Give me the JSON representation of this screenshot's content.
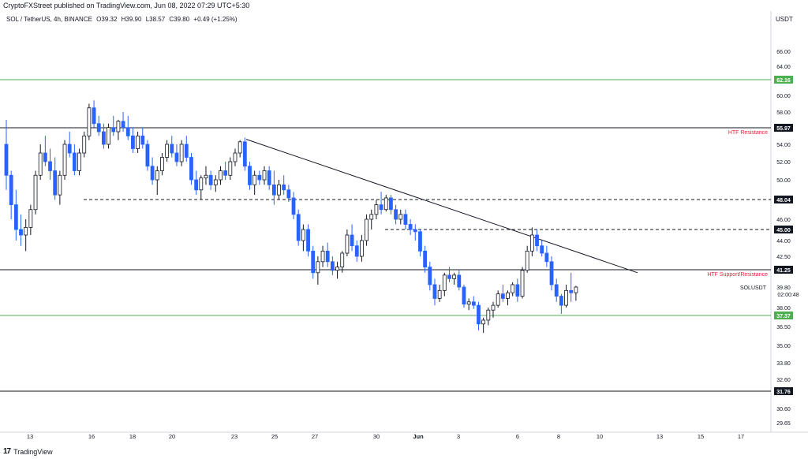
{
  "header": {
    "publisher": "CryptoFXStreet published on TradingView.com, Jun 08, 2022 07:29 UTC+5:30",
    "symbol": "SOL / TetherUS, 4h, BINANCE",
    "open": "O39.32",
    "high": "H39.90",
    "low": "L38.57",
    "close": "C39.80",
    "change": "+0.49 (+1.25%)",
    "currency": "USDT"
  },
  "footer": {
    "logo_text": "17",
    "brand": "TradingView"
  },
  "colors": {
    "up": "#131722",
    "down": "#2962ff",
    "green_line": "#4caf50",
    "label_red": "#e91e3c",
    "axis_bg": "#131722",
    "green_label_bg": "#4caf50"
  },
  "chart_data": {
    "type": "candlestick",
    "timeframe": "4h",
    "symbol": "SOLUSDT",
    "y_axis_ticks": [
      66.0,
      64.0,
      62.16,
      60.0,
      58.0,
      55.97,
      54.0,
      52.0,
      50.0,
      48.04,
      46.0,
      45.0,
      44.0,
      42.5,
      41.25,
      39.8,
      38.0,
      37.37,
      36.5,
      35.0,
      33.8,
      32.6,
      31.76,
      30.6,
      29.65
    ],
    "x_axis_labels": [
      "13",
      "16",
      "18",
      "20",
      "23",
      "25",
      "27",
      "30",
      "Jun",
      "3",
      "6",
      "8",
      "10",
      "13",
      "15",
      "17"
    ],
    "last_price": {
      "symbol": "SOLUSDT",
      "value": "39.80",
      "countdown": "02:00:48"
    },
    "horizontal_levels": [
      {
        "price": 62.16,
        "style": "solid",
        "color": "green",
        "label": ""
      },
      {
        "price": 55.97,
        "style": "solid",
        "color": "black",
        "label": "HTF Resistance"
      },
      {
        "price": 48.04,
        "style": "dashed",
        "color": "black",
        "label": ""
      },
      {
        "price": 45.0,
        "style": "dashed",
        "color": "black",
        "label": ""
      },
      {
        "price": 41.25,
        "style": "solid",
        "color": "black",
        "label": "HTF Support/Resistance"
      },
      {
        "price": 37.37,
        "style": "solid",
        "color": "green",
        "label": ""
      },
      {
        "price": 31.76,
        "style": "solid",
        "color": "black",
        "label": ""
      }
    ],
    "trendline": {
      "from": {
        "day": "May 23",
        "price": 54.6
      },
      "to": {
        "day": "Jun 12",
        "price": 41.0
      }
    },
    "candles": [
      [
        54.0,
        57.0,
        49.0,
        50.5
      ],
      [
        50.5,
        51.0,
        46.0,
        47.5
      ],
      [
        47.5,
        49.0,
        44.0,
        45.0
      ],
      [
        45.0,
        46.5,
        43.5,
        44.5
      ],
      [
        44.5,
        46.0,
        43.0,
        45.2
      ],
      [
        45.2,
        47.5,
        44.5,
        47.0
      ],
      [
        47.0,
        51.0,
        46.5,
        50.5
      ],
      [
        50.5,
        54.0,
        50.0,
        53.0
      ],
      [
        53.0,
        55.0,
        51.5,
        52.0
      ],
      [
        52.0,
        53.5,
        50.0,
        51.0
      ],
      [
        51.0,
        52.5,
        48.0,
        48.5
      ],
      [
        48.5,
        51.0,
        47.5,
        50.5
      ],
      [
        50.5,
        54.5,
        50.0,
        54.0
      ],
      [
        54.0,
        55.5,
        52.5,
        53.0
      ],
      [
        53.0,
        54.0,
        50.5,
        51.0
      ],
      [
        51.0,
        53.5,
        50.5,
        53.0
      ],
      [
        53.0,
        55.5,
        52.5,
        55.0
      ],
      [
        55.0,
        59.0,
        54.5,
        58.5
      ],
      [
        58.5,
        59.4,
        56.0,
        56.5
      ],
      [
        56.5,
        57.5,
        55.0,
        55.5
      ],
      [
        55.5,
        56.5,
        53.5,
        54.0
      ],
      [
        54.0,
        56.5,
        53.5,
        56.0
      ],
      [
        56.0,
        57.5,
        55.0,
        55.5
      ],
      [
        55.5,
        57.0,
        54.5,
        56.8
      ],
      [
        56.8,
        58.0,
        55.5,
        56.0
      ],
      [
        56.0,
        57.5,
        54.5,
        55.0
      ],
      [
        55.0,
        56.0,
        53.0,
        53.5
      ],
      [
        53.5,
        55.5,
        53.0,
        55.0
      ],
      [
        55.0,
        56.0,
        53.5,
        54.0
      ],
      [
        54.0,
        54.5,
        51.0,
        51.5
      ],
      [
        51.5,
        52.5,
        49.5,
        50.0
      ],
      [
        50.0,
        51.5,
        48.5,
        51.0
      ],
      [
        51.0,
        53.0,
        50.5,
        52.5
      ],
      [
        52.5,
        54.5,
        52.0,
        54.0
      ],
      [
        54.0,
        55.0,
        52.5,
        53.0
      ],
      [
        53.0,
        54.0,
        51.5,
        52.0
      ],
      [
        52.0,
        54.5,
        51.5,
        54.0
      ],
      [
        54.0,
        55.0,
        52.0,
        52.5
      ],
      [
        52.5,
        53.0,
        49.5,
        50.0
      ],
      [
        50.0,
        51.0,
        48.5,
        49.0
      ],
      [
        49.0,
        50.5,
        48.0,
        50.2
      ],
      [
        50.2,
        51.5,
        49.5,
        50.5
      ],
      [
        50.5,
        51.0,
        49.0,
        49.5
      ],
      [
        49.5,
        50.5,
        48.8,
        50.0
      ],
      [
        50.0,
        51.5,
        49.5,
        51.0
      ],
      [
        51.0,
        52.0,
        50.0,
        50.5
      ],
      [
        50.5,
        52.5,
        50.0,
        52.0
      ],
      [
        52.0,
        53.5,
        51.5,
        53.0
      ],
      [
        53.0,
        54.5,
        52.5,
        54.3
      ],
      [
        54.3,
        54.8,
        51.0,
        51.5
      ],
      [
        51.5,
        52.0,
        49.0,
        49.5
      ],
      [
        49.5,
        51.0,
        48.5,
        50.5
      ],
      [
        50.5,
        51.0,
        49.5,
        50.0
      ],
      [
        50.0,
        51.5,
        49.5,
        51.0
      ],
      [
        51.0,
        51.5,
        49.0,
        49.5
      ],
      [
        49.5,
        51.0,
        47.5,
        48.5
      ],
      [
        48.5,
        50.0,
        48.0,
        49.5
      ],
      [
        49.5,
        50.5,
        48.5,
        49.0
      ],
      [
        49.0,
        49.5,
        47.8,
        48.2
      ],
      [
        48.2,
        48.8,
        46.0,
        46.5
      ],
      [
        46.5,
        47.0,
        43.5,
        44.0
      ],
      [
        44.0,
        45.5,
        43.0,
        45.0
      ],
      [
        45.0,
        45.5,
        42.5,
        43.0
      ],
      [
        43.0,
        43.5,
        40.5,
        41.0
      ],
      [
        41.0,
        42.5,
        40.0,
        42.0
      ],
      [
        42.0,
        43.5,
        41.5,
        43.0
      ],
      [
        43.0,
        43.8,
        41.5,
        42.0
      ],
      [
        42.0,
        42.5,
        40.8,
        41.2
      ],
      [
        41.2,
        42.0,
        40.5,
        41.5
      ],
      [
        41.5,
        43.0,
        41.0,
        42.8
      ],
      [
        42.8,
        45.0,
        42.5,
        44.5
      ],
      [
        44.5,
        45.5,
        43.0,
        43.5
      ],
      [
        43.5,
        44.0,
        42.0,
        42.5
      ],
      [
        42.5,
        44.5,
        42.0,
        44.0
      ],
      [
        44.0,
        46.5,
        43.5,
        46.0
      ],
      [
        46.0,
        47.0,
        45.0,
        46.5
      ],
      [
        46.5,
        48.0,
        46.0,
        47.5
      ],
      [
        47.5,
        48.8,
        46.5,
        47.0
      ],
      [
        47.0,
        48.5,
        46.8,
        48.2
      ],
      [
        48.2,
        48.5,
        46.5,
        47.0
      ],
      [
        47.0,
        47.5,
        45.5,
        46.0
      ],
      [
        46.0,
        47.0,
        45.5,
        46.5
      ],
      [
        46.5,
        47.0,
        45.0,
        45.5
      ],
      [
        45.5,
        46.0,
        44.5,
        45.0
      ],
      [
        45.0,
        45.5,
        44.0,
        44.8
      ],
      [
        44.8,
        45.0,
        42.5,
        43.0
      ],
      [
        43.0,
        43.5,
        41.0,
        41.5
      ],
      [
        41.5,
        42.0,
        39.5,
        40.0
      ],
      [
        40.0,
        40.5,
        38.2,
        38.8
      ],
      [
        38.8,
        40.0,
        38.5,
        39.5
      ],
      [
        39.5,
        41.0,
        39.0,
        40.8
      ],
      [
        40.8,
        41.5,
        40.2,
        40.5
      ],
      [
        40.5,
        41.0,
        40.0,
        40.8
      ],
      [
        40.8,
        41.2,
        39.5,
        39.8
      ],
      [
        39.8,
        40.0,
        38.0,
        38.3
      ],
      [
        38.3,
        38.8,
        37.8,
        38.5
      ],
      [
        38.5,
        39.0,
        37.9,
        38.2
      ],
      [
        38.2,
        38.5,
        36.2,
        36.7
      ],
      [
        36.7,
        37.2,
        36.0,
        37.0
      ],
      [
        37.0,
        38.0,
        36.6,
        37.8
      ],
      [
        37.8,
        38.5,
        37.2,
        38.2
      ],
      [
        38.2,
        39.5,
        38.0,
        39.2
      ],
      [
        39.2,
        40.0,
        38.5,
        38.8
      ],
      [
        38.8,
        39.5,
        38.2,
        39.3
      ],
      [
        39.3,
        40.2,
        39.0,
        40.0
      ],
      [
        40.0,
        40.5,
        38.5,
        39.0
      ],
      [
        39.0,
        41.5,
        38.8,
        41.2
      ],
      [
        41.2,
        43.5,
        41.0,
        43.0
      ],
      [
        43.0,
        45.2,
        42.5,
        44.5
      ],
      [
        44.5,
        45.0,
        43.0,
        43.5
      ],
      [
        43.5,
        44.0,
        42.5,
        42.8
      ],
      [
        42.8,
        43.5,
        41.5,
        42.0
      ],
      [
        42.0,
        42.5,
        39.5,
        40.0
      ],
      [
        40.0,
        40.5,
        38.5,
        39.0
      ],
      [
        39.0,
        39.2,
        37.5,
        38.2
      ],
      [
        38.2,
        40.0,
        38.0,
        39.5
      ],
      [
        39.5,
        41.0,
        38.5,
        39.3
      ],
      [
        39.3,
        39.9,
        38.6,
        39.8
      ]
    ]
  }
}
